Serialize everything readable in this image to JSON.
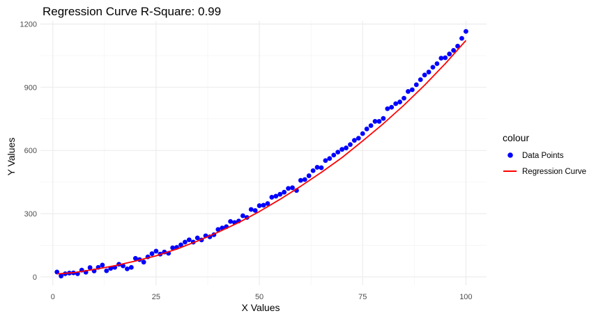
{
  "chart_data": {
    "type": "scatter",
    "title": "Regression Curve R-Square: 0.99",
    "xlabel": "X Values",
    "ylabel": "Y Values",
    "xlim": [
      -3,
      105
    ],
    "ylim": [
      -40,
      1215
    ],
    "x_ticks": [
      0,
      25,
      50,
      75,
      100
    ],
    "y_ticks": [
      0,
      300,
      600,
      900,
      1200
    ],
    "grid": true,
    "legend_title": "colour",
    "legend_position": "right",
    "series": [
      {
        "name": "Data Points",
        "kind": "points",
        "color": "#0000FF",
        "x": [
          1,
          2,
          3,
          4,
          5,
          6,
          7,
          8,
          9,
          10,
          11,
          12,
          13,
          14,
          15,
          16,
          17,
          18,
          19,
          20,
          21,
          22,
          23,
          24,
          25,
          26,
          27,
          28,
          29,
          30,
          31,
          32,
          33,
          34,
          35,
          36,
          37,
          38,
          39,
          40,
          41,
          42,
          43,
          44,
          45,
          46,
          47,
          48,
          49,
          50,
          51,
          52,
          53,
          54,
          55,
          56,
          57,
          58,
          59,
          60,
          61,
          62,
          63,
          64,
          65,
          66,
          67,
          68,
          69,
          70,
          71,
          72,
          73,
          74,
          75,
          76,
          77,
          78,
          79,
          80,
          81,
          82,
          83,
          84,
          85,
          86,
          87,
          88,
          89,
          90,
          91,
          92,
          93,
          94,
          95,
          96,
          97,
          98,
          99,
          100
        ],
        "y": [
          23,
          4,
          15,
          18,
          19,
          15,
          32,
          22,
          44,
          28,
          45,
          56,
          29,
          40,
          45,
          60,
          52,
          38,
          45,
          88,
          82,
          70,
          95,
          110,
          122,
          108,
          118,
          112,
          138,
          140,
          152,
          165,
          176,
          165,
          185,
          175,
          195,
          190,
          200,
          225,
          232,
          238,
          263,
          258,
          265,
          290,
          282,
          320,
          315,
          338,
          340,
          348,
          378,
          383,
          392,
          402,
          420,
          423,
          410,
          458,
          462,
          480,
          504,
          520,
          518,
          552,
          562,
          578,
          592,
          605,
          612,
          628,
          648,
          658,
          680,
          702,
          718,
          738,
          738,
          752,
          798,
          805,
          822,
          830,
          848,
          880,
          888,
          912,
          936,
          958,
          972,
          995,
          1012,
          1038,
          1040,
          1058,
          1075,
          1095,
          1132,
          1165
        ]
      },
      {
        "name": "Regression Curve",
        "kind": "line",
        "color": "#FF0000",
        "x": [
          1,
          5,
          10,
          15,
          20,
          25,
          30,
          35,
          40,
          45,
          50,
          55,
          60,
          65,
          70,
          75,
          80,
          85,
          90,
          95,
          100
        ],
        "y": [
          14,
          20,
          35,
          53,
          75,
          100,
          132,
          170,
          212,
          258,
          310,
          368,
          430,
          496,
          566,
          645,
          727,
          815,
          910,
          1012,
          1122
        ]
      }
    ]
  }
}
